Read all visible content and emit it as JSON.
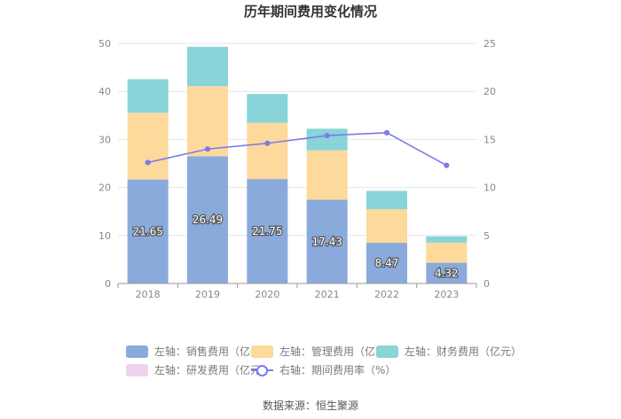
{
  "title": "历年期间费用变化情况",
  "source": "数据来源：恒生聚源",
  "chart_data": {
    "type": "bar",
    "stacked": true,
    "categories": [
      "2018",
      "2019",
      "2020",
      "2021",
      "2022",
      "2023"
    ],
    "series": [
      {
        "name": "左轴：销售费用（亿元）",
        "axis": "left",
        "color": "#8aaadc",
        "values": [
          21.65,
          26.49,
          21.75,
          17.43,
          8.47,
          4.32
        ],
        "labels": [
          "21.65",
          "26.49",
          "21.75",
          "17.43",
          "8.47",
          "4.32"
        ]
      },
      {
        "name": "左轴：管理费用（亿元）",
        "axis": "left",
        "color": "#fdd99b",
        "values": [
          13.9,
          14.6,
          11.7,
          10.3,
          7.0,
          4.2
        ]
      },
      {
        "name": "左轴：财务费用（亿元）",
        "axis": "left",
        "color": "#88d4d8",
        "values": [
          7.0,
          8.2,
          6.0,
          4.5,
          3.8,
          1.3
        ]
      },
      {
        "name": "左轴：研发费用（亿元）",
        "axis": "left",
        "color": "#edd4ec",
        "values": [
          0,
          0,
          0,
          0,
          0,
          0
        ]
      },
      {
        "name": "右轴：期间费用率（%）",
        "axis": "right",
        "type": "line",
        "color": "#7b7be8",
        "values": [
          12.6,
          14.0,
          14.6,
          15.4,
          15.7,
          12.3
        ]
      }
    ],
    "left_axis": {
      "min": 0,
      "max": 50,
      "ticks": [
        0,
        10,
        20,
        30,
        40,
        50
      ]
    },
    "right_axis": {
      "min": 0,
      "max": 25,
      "ticks": [
        0,
        5,
        10,
        15,
        20,
        25
      ]
    },
    "legend_position": "bottom"
  }
}
